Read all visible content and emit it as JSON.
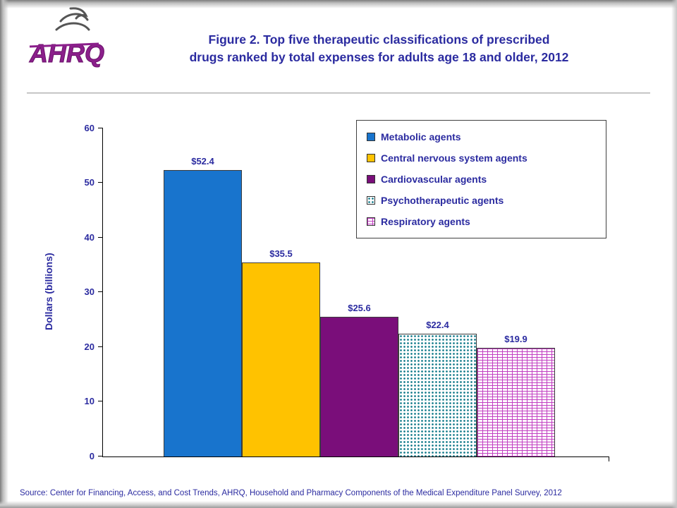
{
  "header": {
    "logo_text": "AHRQ",
    "title_line1": "Figure 2. Top five therapeutic classifications of prescribed",
    "title_line2": "drugs ranked by total expenses for adults age 18 and older, 2012"
  },
  "chart_data": {
    "type": "bar",
    "title": "Figure 2. Top five therapeutic classifications of prescribed drugs ranked by total expenses for adults age 18 and older, 2012",
    "xlabel": "",
    "ylabel": "Dollars (billions)",
    "ylim": [
      0,
      60
    ],
    "yticks": [
      0,
      10,
      20,
      30,
      40,
      50,
      60
    ],
    "grid": false,
    "legend_position": "top-right",
    "categories": [
      "Metabolic agents",
      "Central nervous system agents",
      "Cardiovascular agents",
      "Psychotherapeutic agents",
      "Respiratory agents"
    ],
    "values": [
      52.4,
      35.5,
      25.6,
      22.4,
      19.9
    ],
    "value_labels": [
      "$52.4",
      "$35.5",
      "$25.6",
      "$22.4",
      "$19.9"
    ],
    "series_styles": [
      {
        "fill": "solid",
        "color": "#1874CD"
      },
      {
        "fill": "solid",
        "color": "#FFC200"
      },
      {
        "fill": "solid",
        "color": "#7A0E7A"
      },
      {
        "fill": "dots",
        "color": "#117A8A"
      },
      {
        "fill": "grid",
        "color": "#C23FC2"
      }
    ],
    "colors": {
      "text_accent": "#2B2BA0",
      "axis": "#000000"
    }
  },
  "footer": {
    "source": "Source: Center for Financing, Access, and Cost Trends, AHRQ, Household and Pharmacy Components of the Medical Expenditure Panel Survey, 2012"
  }
}
